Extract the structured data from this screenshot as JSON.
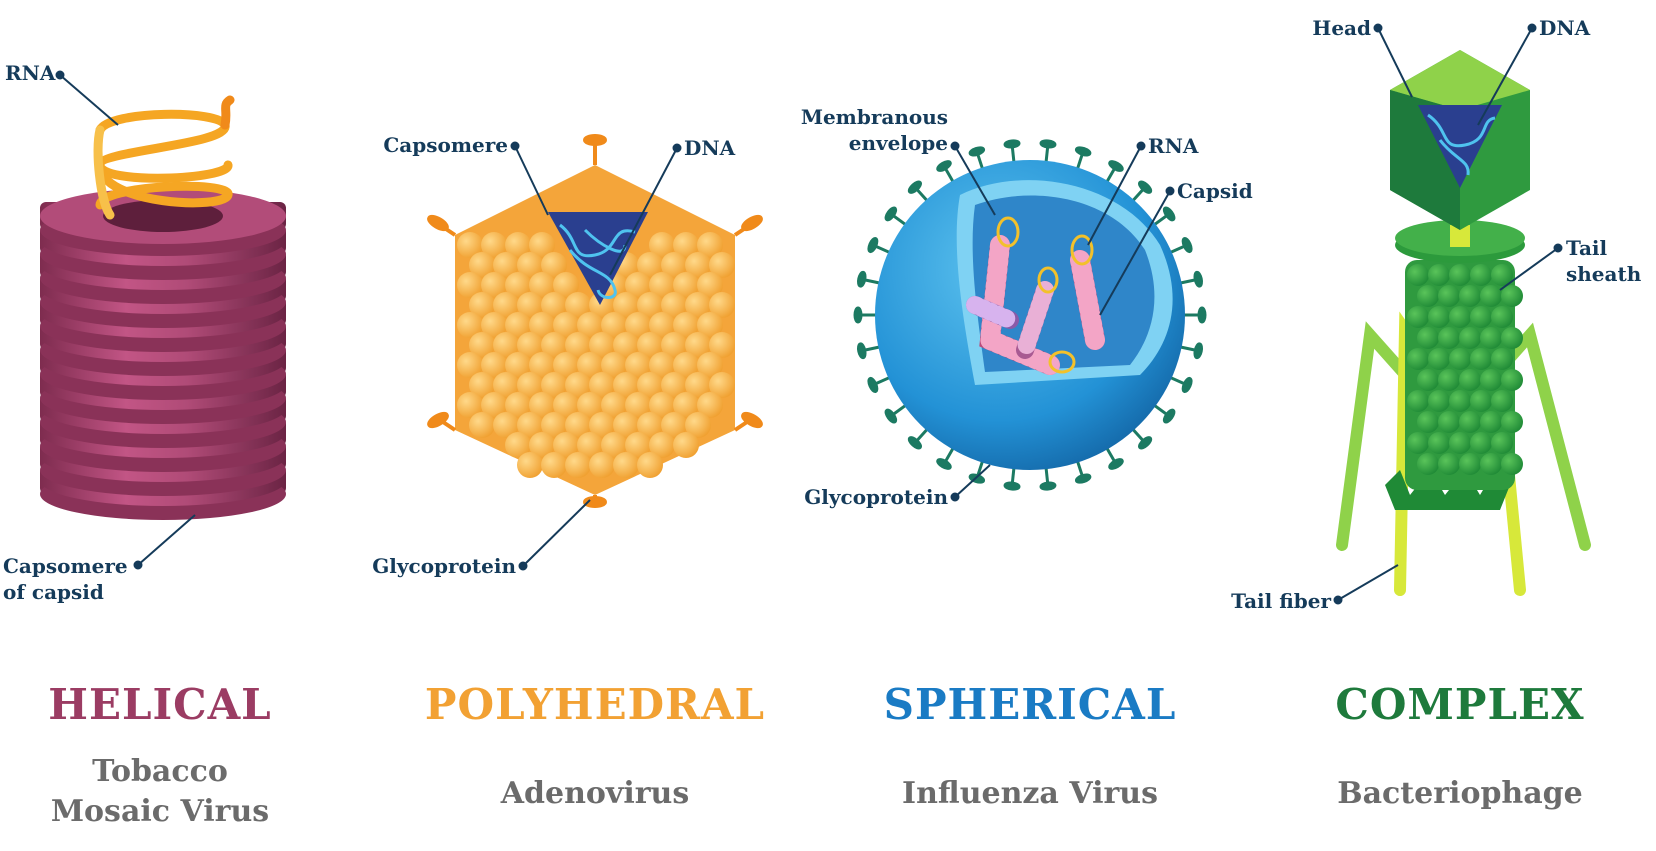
{
  "colors": {
    "helical": "#9b3c63",
    "polyhedral": "#f2a133",
    "spherical": "#1a7bc4",
    "complex": "#1e7a3c",
    "label_text": "#153b5a",
    "subtitle_text": "#6b6b6b"
  },
  "viruses": [
    {
      "title": "HELICAL",
      "subtitle": "Tobacco\nMosaic Virus",
      "labels": {
        "rna": "RNA",
        "capsomere": "Capsomere\nof capsid"
      }
    },
    {
      "title": "POLYHEDRAL",
      "subtitle": "Adenovirus",
      "labels": {
        "capsomere": "Capsomere",
        "dna": "DNA",
        "glycoprotein": "Glycoprotein"
      }
    },
    {
      "title": "SPHERICAL",
      "subtitle": "Influenza Virus",
      "labels": {
        "envelope": "Membranous\nenvelope",
        "rna": "RNA",
        "capsid": "Capsid",
        "glycoprotein": "Glycoprotein"
      }
    },
    {
      "title": "COMPLEX",
      "subtitle": "Bacteriophage",
      "labels": {
        "head": "Head",
        "dna": "DNA",
        "tail_sheath": "Tail\nsheath",
        "tail_fiber": "Tail fiber"
      }
    }
  ]
}
